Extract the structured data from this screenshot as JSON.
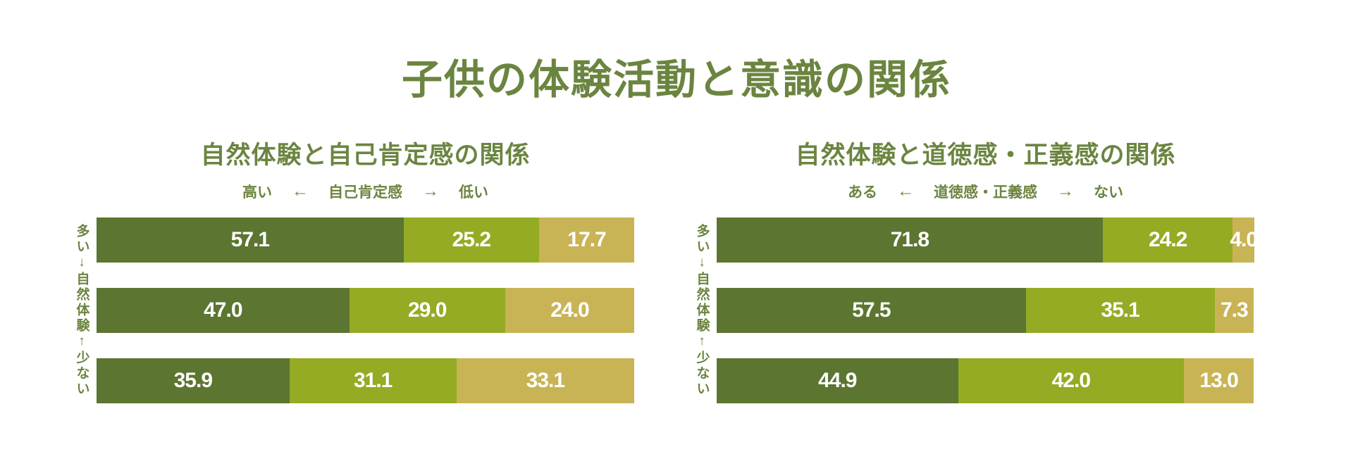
{
  "page": {
    "title": "子供の体験活動と意識の関係"
  },
  "colors": {
    "heading_text": "#6b8540",
    "segment_dark_green": "#5c7531",
    "segment_yellow_green": "#94ab23",
    "segment_gold": "#c9b455",
    "value_text": "#ffffff",
    "background": "#ffffff"
  },
  "chart_data": [
    {
      "type": "bar",
      "variant": "horizontal-stacked",
      "title": "自然体験と自己肯定感の関係",
      "caption": {
        "left_end": "高い",
        "left_arrow": "←",
        "measure": "自己肯定感",
        "right_arrow": "→",
        "right_end": "低い"
      },
      "y_axis_label": "多い↓自然体験↑少ない",
      "xlim": [
        0,
        100
      ],
      "grid": false,
      "legend": "none",
      "rows": [
        {
          "values": [
            "57.1",
            "25.2",
            "17.7"
          ]
        },
        {
          "values": [
            "47.0",
            "29.0",
            "24.0"
          ]
        },
        {
          "values": [
            "35.9",
            "31.1",
            "33.1"
          ]
        }
      ]
    },
    {
      "type": "bar",
      "variant": "horizontal-stacked",
      "title": "自然体験と道徳感・正義感の関係",
      "caption": {
        "left_end": "ある",
        "left_arrow": "←",
        "measure": "道徳感・正義感",
        "right_arrow": "→",
        "right_end": "ない"
      },
      "y_axis_label": "多い↓自然体験↑少ない",
      "xlim": [
        0,
        100
      ],
      "grid": false,
      "legend": "none",
      "rows": [
        {
          "values": [
            "71.8",
            "24.2",
            "4.0"
          ]
        },
        {
          "values": [
            "57.5",
            "35.1",
            "7.3"
          ]
        },
        {
          "values": [
            "44.9",
            "42.0",
            "13.0"
          ]
        }
      ]
    }
  ]
}
